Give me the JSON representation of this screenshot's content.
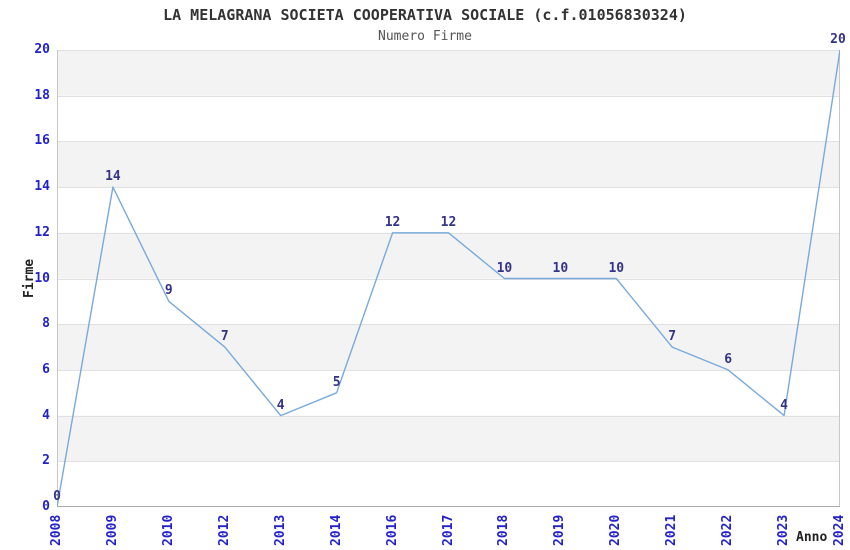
{
  "chart_data": {
    "type": "line",
    "title": "LA MELAGRANA SOCIETA COOPERATIVA SOCIALE (c.f.01056830324)",
    "subtitle": "Numero Firme",
    "xlabel": "Anno",
    "ylabel": "Firme",
    "x": [
      "2008",
      "2009",
      "2010",
      "2012",
      "2013",
      "2014",
      "2016",
      "2017",
      "2018",
      "2019",
      "2020",
      "2021",
      "2022",
      "2023",
      "2024"
    ],
    "values": [
      0,
      14,
      9,
      7,
      4,
      5,
      12,
      12,
      10,
      10,
      10,
      7,
      6,
      4,
      20
    ],
    "yticks": [
      0,
      2,
      4,
      6,
      8,
      10,
      12,
      14,
      16,
      18,
      20
    ],
    "ylim": [
      0,
      20
    ],
    "grid": true,
    "alternating_bands": true,
    "data_labels": true,
    "legend": "none",
    "colors": {
      "line": "#78AADC",
      "axis_tick_label": "#2222CC",
      "data_label": "#333388",
      "band_fill": "#F3F3F3",
      "gridline": "#E0E0E0",
      "plot_border": "#C8C8C8",
      "axis_line": "#AAAAAA",
      "title": "#333333",
      "subtitle": "#555555"
    }
  }
}
